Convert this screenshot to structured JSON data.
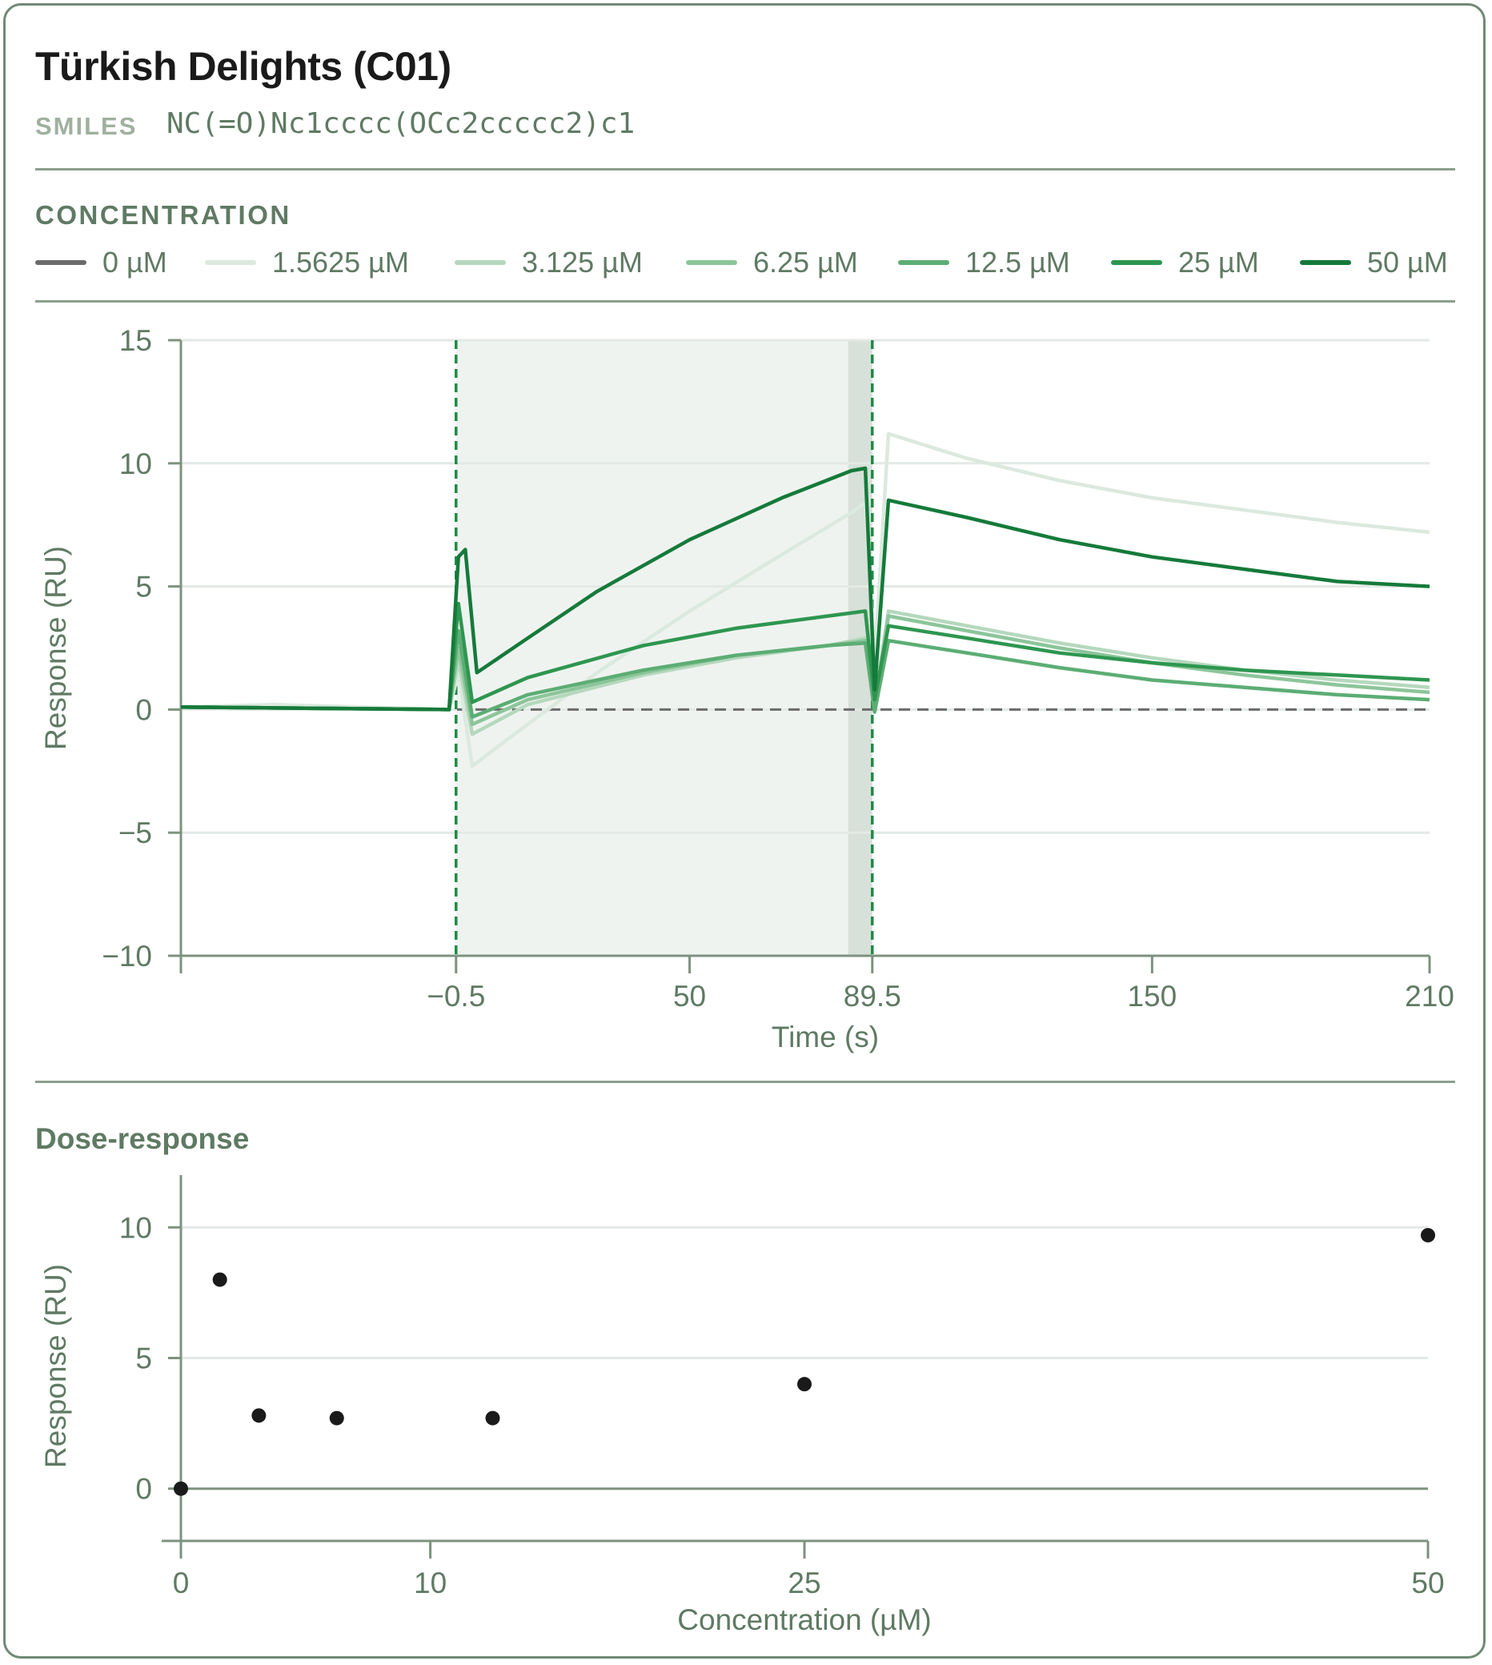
{
  "header": {
    "title": "Türkish Delights (C01)",
    "smiles_label": "SMILES",
    "smiles_value": "NC(=O)Nc1cccc(OCc2ccccc2)c1"
  },
  "legend": {
    "label": "CONCENTRATION",
    "items": [
      {
        "label": "0 µM",
        "color": "#6b6b6b"
      },
      {
        "label": "1.5625 µM",
        "color": "#dbe9de"
      },
      {
        "label": "3.125 µM",
        "color": "#b5d8bd"
      },
      {
        "label": "6.25 µM",
        "color": "#8cc59a"
      },
      {
        "label": "12.5 µM",
        "color": "#5cad74"
      },
      {
        "label": "25 µM",
        "color": "#2e9650"
      },
      {
        "label": "50 µM",
        "color": "#157a3a"
      }
    ]
  },
  "chart_data": [
    {
      "type": "line",
      "xlabel": "Time (s)",
      "ylabel": "Response (RU)",
      "xlim": [
        -60,
        210
      ],
      "ylim": [
        -10,
        15
      ],
      "xticks": [
        -0.5,
        50,
        89.5,
        150,
        210
      ],
      "xtick_labels": [
        "−0.5",
        "50",
        "89.5",
        "150",
        "210"
      ],
      "yticks": [
        -10,
        -5,
        0,
        5,
        10,
        15
      ],
      "ytick_labels": [
        "−10",
        "−5",
        "0",
        "5",
        "10",
        "15"
      ],
      "grid": "horizontal",
      "injection_start": -0.5,
      "injection_end": 89.5,
      "shaded_region": [
        -0.5,
        89.5
      ],
      "series": [
        {
          "name": "0 µM",
          "color": "#6b6b6b",
          "dashed": true,
          "points": [
            [
              -60,
              0.1
            ],
            [
              -20,
              0.05
            ],
            [
              -1,
              0
            ],
            [
              89.5,
              0
            ],
            [
              210,
              0
            ]
          ]
        },
        {
          "name": "1.5625 µM",
          "color": "#dbe9de",
          "points": [
            [
              -60,
              0.1
            ],
            [
              -40,
              0.2
            ],
            [
              -2,
              0
            ],
            [
              0,
              1.5
            ],
            [
              3,
              -2.3
            ],
            [
              10,
              -1.3
            ],
            [
              30,
              1.5
            ],
            [
              50,
              4.0
            ],
            [
              70,
              6.3
            ],
            [
              85,
              8.0
            ],
            [
              88,
              8.4
            ],
            [
              90,
              2.0
            ],
            [
              93,
              11.2
            ],
            [
              110,
              10.2
            ],
            [
              130,
              9.3
            ],
            [
              150,
              8.6
            ],
            [
              170,
              8.1
            ],
            [
              190,
              7.6
            ],
            [
              210,
              7.2
            ]
          ]
        },
        {
          "name": "3.125 µM",
          "color": "#b5d8bd",
          "points": [
            [
              -60,
              0.1
            ],
            [
              -2,
              0
            ],
            [
              0,
              2.0
            ],
            [
              3,
              -1.0
            ],
            [
              15,
              0.2
            ],
            [
              40,
              1.4
            ],
            [
              60,
              2.1
            ],
            [
              80,
              2.6
            ],
            [
              88,
              2.9
            ],
            [
              90,
              0.3
            ],
            [
              93,
              4.0
            ],
            [
              110,
              3.4
            ],
            [
              130,
              2.7
            ],
            [
              150,
              2.1
            ],
            [
              170,
              1.6
            ],
            [
              190,
              1.2
            ],
            [
              210,
              0.9
            ]
          ]
        },
        {
          "name": "6.25 µM",
          "color": "#8cc59a",
          "points": [
            [
              -60,
              0.1
            ],
            [
              -2,
              0
            ],
            [
              0,
              2.5
            ],
            [
              3,
              -0.6
            ],
            [
              15,
              0.4
            ],
            [
              40,
              1.5
            ],
            [
              60,
              2.2
            ],
            [
              80,
              2.6
            ],
            [
              88,
              2.8
            ],
            [
              90,
              0.1
            ],
            [
              93,
              3.8
            ],
            [
              110,
              3.2
            ],
            [
              130,
              2.5
            ],
            [
              150,
              1.9
            ],
            [
              170,
              1.4
            ],
            [
              190,
              1.0
            ],
            [
              210,
              0.7
            ]
          ]
        },
        {
          "name": "12.5 µM",
          "color": "#5cad74",
          "points": [
            [
              -60,
              0.1
            ],
            [
              -2,
              0
            ],
            [
              0,
              3.2
            ],
            [
              3,
              -0.3
            ],
            [
              15,
              0.6
            ],
            [
              40,
              1.6
            ],
            [
              60,
              2.2
            ],
            [
              80,
              2.6
            ],
            [
              88,
              2.7
            ],
            [
              90,
              -0.1
            ],
            [
              93,
              2.8
            ],
            [
              110,
              2.3
            ],
            [
              130,
              1.7
            ],
            [
              150,
              1.2
            ],
            [
              170,
              0.9
            ],
            [
              190,
              0.6
            ],
            [
              210,
              0.4
            ]
          ]
        },
        {
          "name": "25 µM",
          "color": "#2e9650",
          "points": [
            [
              -60,
              0.1
            ],
            [
              -2,
              0
            ],
            [
              0,
              4.3
            ],
            [
              3,
              0.3
            ],
            [
              15,
              1.3
            ],
            [
              40,
              2.6
            ],
            [
              60,
              3.3
            ],
            [
              80,
              3.8
            ],
            [
              88,
              4.0
            ],
            [
              90,
              0.4
            ],
            [
              93,
              3.4
            ],
            [
              110,
              2.9
            ],
            [
              130,
              2.3
            ],
            [
              150,
              1.9
            ],
            [
              170,
              1.6
            ],
            [
              190,
              1.4
            ],
            [
              210,
              1.2
            ]
          ]
        },
        {
          "name": "50 µM",
          "color": "#157a3a",
          "points": [
            [
              -60,
              0.1
            ],
            [
              -2,
              0
            ],
            [
              0,
              6.2
            ],
            [
              1.5,
              6.5
            ],
            [
              4,
              1.5
            ],
            [
              15,
              2.9
            ],
            [
              30,
              4.8
            ],
            [
              50,
              6.9
            ],
            [
              70,
              8.6
            ],
            [
              85,
              9.7
            ],
            [
              88,
              9.8
            ],
            [
              90,
              0.8
            ],
            [
              93,
              8.5
            ],
            [
              110,
              7.8
            ],
            [
              130,
              6.9
            ],
            [
              150,
              6.2
            ],
            [
              170,
              5.7
            ],
            [
              190,
              5.2
            ],
            [
              210,
              5.0
            ]
          ]
        }
      ]
    },
    {
      "type": "scatter",
      "title": "Dose-response",
      "xlabel": "Concentration (µM)",
      "ylabel": "Response (RU)",
      "xlim": [
        0,
        50
      ],
      "ylim": [
        -2,
        12
      ],
      "xticks": [
        0,
        10,
        25,
        50
      ],
      "yticks": [
        0,
        5,
        10
      ],
      "grid": "horizontal",
      "x": [
        0,
        1.5625,
        3.125,
        6.25,
        12.5,
        25,
        50
      ],
      "y": [
        0,
        8.0,
        2.8,
        2.7,
        2.7,
        4.0,
        9.7
      ],
      "color": "#1a1a1a"
    }
  ]
}
